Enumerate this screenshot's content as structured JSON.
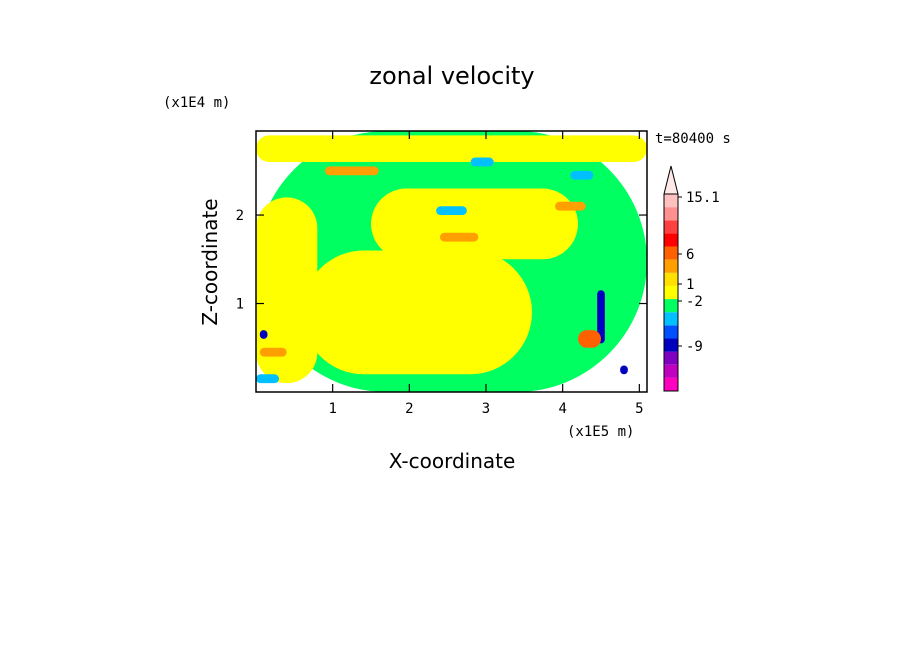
{
  "chart_data": {
    "type": "heatmap",
    "title": "zonal velocity",
    "xlabel": "X-coordinate",
    "ylabel": "Z-coordinate",
    "x_unit": "(x1E5 m)",
    "y_unit": "(x1E4 m)",
    "time_label": "t=80400 s",
    "xlim": [
      0,
      5.1
    ],
    "ylim": [
      0,
      2.95
    ],
    "x_ticks": [
      1,
      2,
      3,
      4,
      5
    ],
    "y_ticks": [
      1,
      2
    ],
    "colorbar": {
      "labels": [
        "15.1",
        "6",
        "1",
        "-2",
        "-9"
      ],
      "label_values": [
        15.1,
        6,
        1,
        -2,
        -9
      ],
      "colors": [
        "#ff00c0",
        "#c000c0",
        "#8000c0",
        "#0000c0",
        "#0050ff",
        "#00c0ff",
        "#00ff60",
        "#ffff00",
        "#ffe000",
        "#ffa000",
        "#ff6000",
        "#ff0000",
        "#ff4040",
        "#ff9090",
        "#ffc0c0"
      ],
      "extends": "upper"
    },
    "regions": [
      {
        "x": [
          0.0,
          5.1
        ],
        "y": [
          0.0,
          2.95
        ],
        "value": 0.0
      },
      {
        "x": [
          0.6,
          3.6
        ],
        "y": [
          0.2,
          1.6
        ],
        "value": 0.5
      },
      {
        "x": [
          0.0,
          0.8
        ],
        "y": [
          0.1,
          2.2
        ],
        "value": 0.5
      },
      {
        "x": [
          0.0,
          5.1
        ],
        "y": [
          2.6,
          2.9
        ],
        "value": 0.5
      },
      {
        "x": [
          1.5,
          4.2
        ],
        "y": [
          1.5,
          2.3
        ],
        "value": 0.5
      },
      {
        "x": [
          0.9,
          1.6
        ],
        "y": [
          2.45,
          2.55
        ],
        "value": 2.0
      },
      {
        "x": [
          2.4,
          2.9
        ],
        "y": [
          1.7,
          1.8
        ],
        "value": 2.0
      },
      {
        "x": [
          3.9,
          4.3
        ],
        "y": [
          2.05,
          2.15
        ],
        "value": 2.0
      },
      {
        "x": [
          2.35,
          2.75
        ],
        "y": [
          2.0,
          2.1
        ],
        "value": -1.0
      },
      {
        "x": [
          2.8,
          3.1
        ],
        "y": [
          2.55,
          2.65
        ],
        "value": -1.0
      },
      {
        "x": [
          4.1,
          4.4
        ],
        "y": [
          2.4,
          2.5
        ],
        "value": -1.0
      },
      {
        "x": [
          0.0,
          0.3
        ],
        "y": [
          0.1,
          0.2
        ],
        "value": -1.0
      },
      {
        "x": [
          4.45,
          4.55
        ],
        "y": [
          0.55,
          1.15
        ],
        "value": -6.0
      },
      {
        "x": [
          4.75,
          4.85
        ],
        "y": [
          0.2,
          0.3
        ],
        "value": -6.0
      },
      {
        "x": [
          0.05,
          0.15
        ],
        "y": [
          0.6,
          0.7
        ],
        "value": -6.0
      },
      {
        "x": [
          4.2,
          4.5
        ],
        "y": [
          0.5,
          0.7
        ],
        "value": 4.0
      },
      {
        "x": [
          0.05,
          0.4
        ],
        "y": [
          0.4,
          0.5
        ],
        "value": 2.0
      }
    ]
  }
}
